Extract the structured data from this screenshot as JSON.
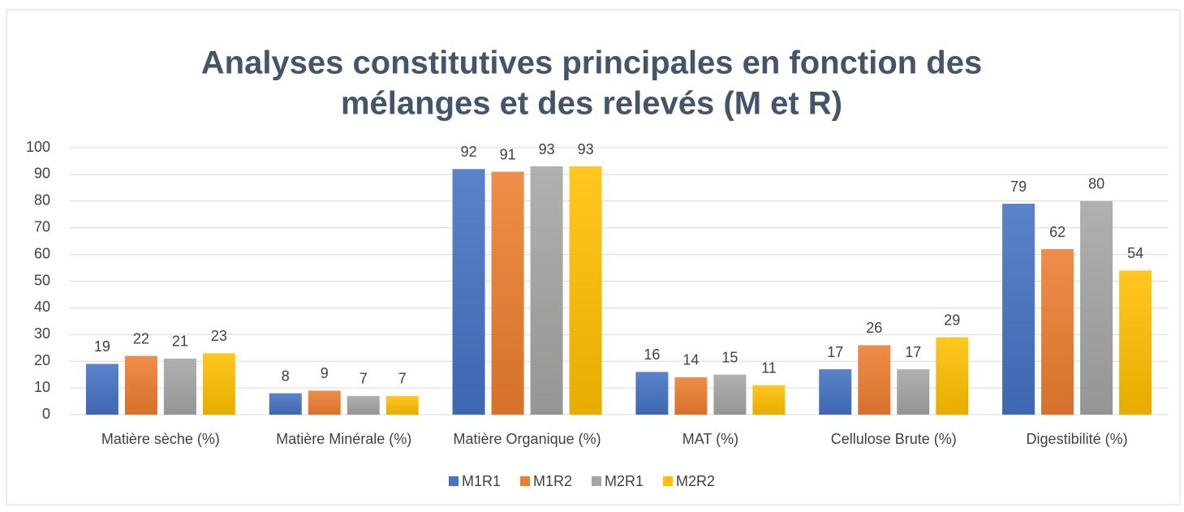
{
  "chart_data": {
    "type": "bar",
    "title": [
      "Analyses constitutives principales en fonction des",
      "mélanges et des relevés (M et R)"
    ],
    "categories": [
      "Matière sèche (%)",
      "Matière Minérale (%)",
      "Matière Organique (%)",
      "MAT (%)",
      "Cellulose Brute (%)",
      "Digestibilité (%)"
    ],
    "series": [
      {
        "name": "M1R1",
        "color": "#4472c4",
        "values": [
          19,
          8,
          92,
          16,
          17,
          79
        ]
      },
      {
        "name": "M1R2",
        "color": "#ed7d31",
        "values": [
          22,
          9,
          91,
          14,
          26,
          62
        ]
      },
      {
        "name": "M2R1",
        "color": "#a5a5a5",
        "values": [
          21,
          7,
          93,
          15,
          17,
          80
        ]
      },
      {
        "name": "M2R2",
        "color": "#ffc000",
        "values": [
          23,
          7,
          93,
          11,
          29,
          54
        ]
      }
    ],
    "ylim": [
      0,
      100
    ],
    "yticks": [
      0,
      10,
      20,
      30,
      40,
      50,
      60,
      70,
      80,
      90,
      100
    ],
    "grid": true,
    "legend": "bottom"
  }
}
